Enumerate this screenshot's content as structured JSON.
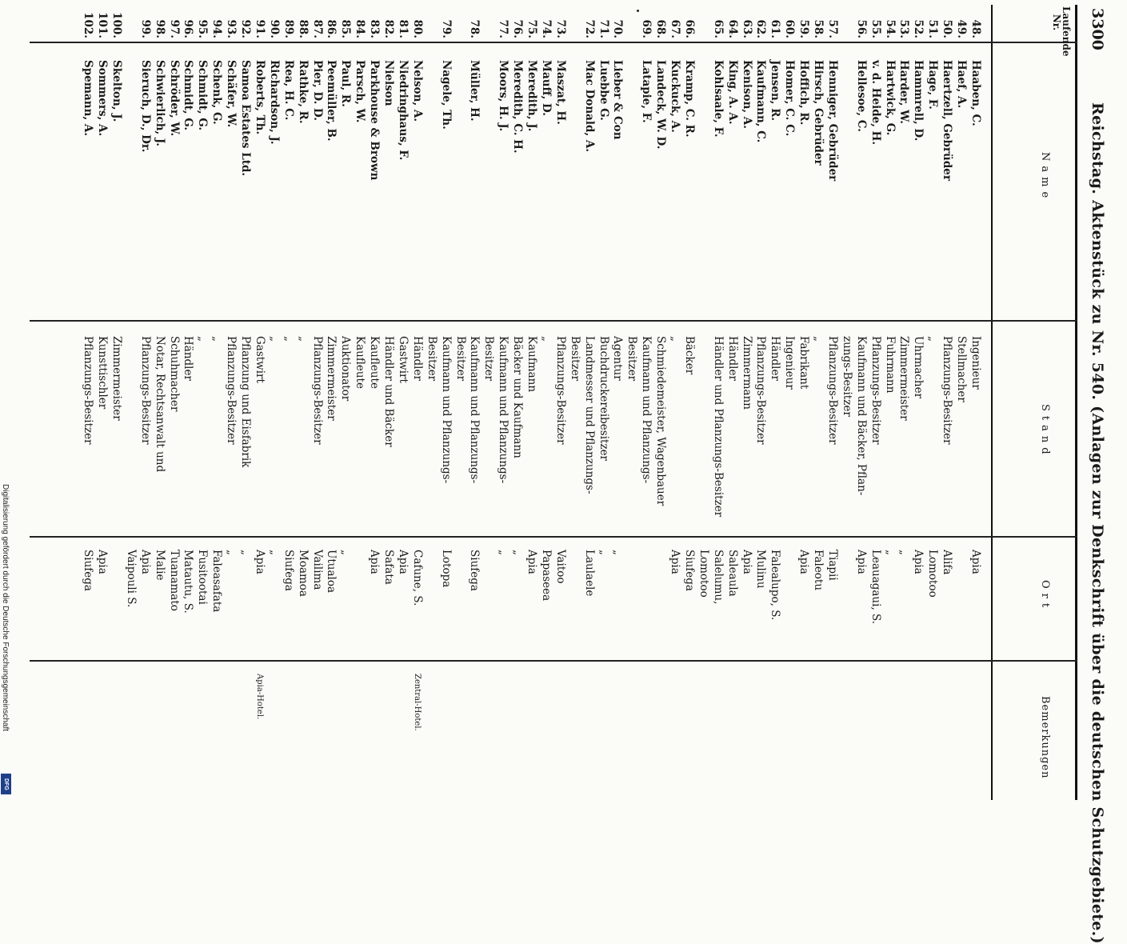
{
  "header": {
    "page_number": "3300",
    "title": "Reichstag. Aktenstück zu Nr. 540. (Anlagen zur Denkschrift über die deutschen Schutzgebiete.)"
  },
  "columns": {
    "nr": "Laufende Nr.",
    "name": "Name",
    "stand": "Stand",
    "ort": "Ort",
    "bemerkungen": "Bemerkungen"
  },
  "rows": [
    {
      "nr": "48.",
      "name": "Haaben, C.",
      "stand": "Ingenieur",
      "ort": "Apia",
      "bem": ""
    },
    {
      "nr": "49.",
      "name": "Haef, A.",
      "stand": "Stellmacher",
      "ort": "",
      "bem": ""
    },
    {
      "nr": "50.",
      "name": "Haertzell, Gebrüder",
      "stand": "Pflanzungs-Besitzer",
      "ort": "Alifa",
      "bem": ""
    },
    {
      "nr": "51.",
      "name": "Hage, F.",
      "stand": "„",
      "ort": "Lomotoo",
      "bem": ""
    },
    {
      "nr": "52.",
      "name": "Hammrell, D.",
      "stand": "Uhrmacher",
      "ort": "Apia",
      "bem": ""
    },
    {
      "nr": "53.",
      "name": "Harder, W.",
      "stand": "Zimmermeister",
      "ort": "„",
      "bem": ""
    },
    {
      "nr": "54.",
      "name": "Hartwick, G.",
      "stand": "Fuhrmann",
      "ort": "„",
      "bem": ""
    },
    {
      "nr": "55.",
      "name": "v. d. Heide, H.",
      "stand": "Pflanzungs-Besitzer",
      "ort": "Leauagaui, S.",
      "bem": ""
    },
    {
      "nr": "56.",
      "name": "Hellesoe, C.",
      "stand": "Kaufmann und Bäcker, Pflan-",
      "ort": "Apia",
      "bem": ""
    },
    {
      "nr": "",
      "name": "",
      "stand": "zungs-Besitzer",
      "ort": "",
      "bem": ""
    },
    {
      "nr": "57.",
      "name": "Henniger, Gebrüder",
      "stand": "Pflanzungs-Besitzer",
      "ort": "Tiapii",
      "bem": ""
    },
    {
      "nr": "58.",
      "name": "Hirsch, Gebrüder",
      "stand": "„",
      "ort": "Faleotu",
      "bem": ""
    },
    {
      "nr": "59.",
      "name": "Hoffich, R.",
      "stand": "Fabrikant",
      "ort": "Apia",
      "bem": ""
    },
    {
      "nr": "60.",
      "name": "Homer, C. C.",
      "stand": "Ingenieur",
      "ort": "",
      "bem": ""
    },
    {
      "nr": "61.",
      "name": "Jensen, R.",
      "stand": "Händler",
      "ort": "Falealupo, S.",
      "bem": ""
    },
    {
      "nr": "62.",
      "name": "Kaufmann, C.",
      "stand": "Pflanzungs-Besitzer",
      "ort": "Mulinu",
      "bem": ""
    },
    {
      "nr": "63.",
      "name": "Kenison, A.",
      "stand": "Zimmermann",
      "ort": "Apia",
      "bem": ""
    },
    {
      "nr": "64.",
      "name": "King, A. A.",
      "stand": "Händler",
      "ort": "Saleaula",
      "bem": ""
    },
    {
      "nr": "65.",
      "name": "Kohlsaale, F.",
      "stand": "Händler und Pflanzungs-Besitzer",
      "ort": "Salelumu,",
      "bem": ""
    },
    {
      "nr": "",
      "name": "",
      "stand": "",
      "ort": "Lomotoo",
      "bem": ""
    },
    {
      "nr": "66.",
      "name": "Kramp, C. R.",
      "stand": "Bäcker",
      "ort": "Siufega",
      "bem": ""
    },
    {
      "nr": "67.",
      "name": "Kuckuck, A.",
      "stand": "„",
      "ort": "Apia",
      "bem": ""
    },
    {
      "nr": "68.",
      "name": "Landeck, W. D.",
      "stand": "Schmiedemeister, Wagenbauer",
      "ort": "",
      "bem": ""
    },
    {
      "nr": "69.",
      "name": "Latapie, F.",
      "stand": "Kaufmann und Pflanzungs-",
      "ort": "",
      "bem": ""
    },
    {
      "nr": "",
      "name": "",
      "stand": "Besitzer",
      "ort": "",
      "bem": ""
    },
    {
      "nr": "70.",
      "name": "Lieber & Con",
      "stand": "Agentur",
      "ort": "„",
      "bem": ""
    },
    {
      "nr": "71.",
      "name": "Luebbe G.",
      "stand": "Buchdruckereibesitzer",
      "ort": "„",
      "bem": ""
    },
    {
      "nr": "72.",
      "name": "Mac Donald, A.",
      "stand": "Landmesser und Pflanzungs-",
      "ort": "Laulaele",
      "bem": ""
    },
    {
      "nr": "",
      "name": "",
      "stand": "Besitzer",
      "ort": "",
      "bem": ""
    },
    {
      "nr": "73.",
      "name": "Maszat, H.",
      "stand": "Pflanzungs-Besitzer",
      "ort": "Vaitoo",
      "bem": ""
    },
    {
      "nr": "74.",
      "name": "Mauff, D.",
      "stand": "„",
      "ort": "Papaseea",
      "bem": ""
    },
    {
      "nr": "75.",
      "name": "Meredith, J.",
      "stand": "Kaufmann",
      "ort": "Apia",
      "bem": ""
    },
    {
      "nr": "76.",
      "name": "Meredith, C. H.",
      "stand": "Bäcker und Kaufmann",
      "ort": "„",
      "bem": ""
    },
    {
      "nr": "77.",
      "name": "Moors, H. J.",
      "stand": "Kaufmann und Pflanzungs-",
      "ort": "„",
      "bem": ""
    },
    {
      "nr": "",
      "name": "",
      "stand": "Besitzer",
      "ort": "",
      "bem": ""
    },
    {
      "nr": "78.",
      "name": "Müller, H.",
      "stand": "Kaufmann und Pflanzungs-",
      "ort": "Siufega",
      "bem": ""
    },
    {
      "nr": "",
      "name": "",
      "stand": "Besitzer",
      "ort": "",
      "bem": ""
    },
    {
      "nr": "79.",
      "name": "Nagele, Th.",
      "stand": "Kaufmann und Pflanzungs-",
      "ort": "Lotopa",
      "bem": ""
    },
    {
      "nr": "",
      "name": "",
      "stand": "Besitzer",
      "ort": "",
      "bem": ""
    },
    {
      "nr": "80.",
      "name": "Nelson, A.",
      "stand": "Händler",
      "ort": "Cafune, S.",
      "bem": "Zentral-Hotel."
    },
    {
      "nr": "81.",
      "name": "Niedringhaus, F.",
      "stand": "Gastwirt",
      "ort": "Apia",
      "bem": ""
    },
    {
      "nr": "82.",
      "name": "Nielson",
      "stand": "Händler und Bäcker",
      "ort": "Safata",
      "bem": ""
    },
    {
      "nr": "83.",
      "name": "Parkhouse & Brown",
      "stand": "Kaufleute",
      "ort": "Apia",
      "bem": ""
    },
    {
      "nr": "84.",
      "name": "Parsch, W.",
      "stand": "Kaufleute",
      "ort": "",
      "bem": ""
    },
    {
      "nr": "85.",
      "name": "Paul, R.",
      "stand": "Auktionator",
      "ort": "„",
      "bem": ""
    },
    {
      "nr": "86.",
      "name": "Peemüller, B.",
      "stand": "Zimmermeister",
      "ort": "Utualoa",
      "bem": ""
    },
    {
      "nr": "87.",
      "name": "Pier, D. D.",
      "stand": "Pflanzungs-Besitzer",
      "ort": "Vailima",
      "bem": ""
    },
    {
      "nr": "88.",
      "name": "Rathke, R.",
      "stand": "„",
      "ort": "Moamoa",
      "bem": ""
    },
    {
      "nr": "89.",
      "name": "Rea, H. C.",
      "stand": "„",
      "ort": "Siufega",
      "bem": ""
    },
    {
      "nr": "90.",
      "name": "Richardson, J.",
      "stand": "„",
      "ort": "„",
      "bem": ""
    },
    {
      "nr": "91.",
      "name": "Roberts, Th.",
      "stand": "Gastwirt",
      "ort": "Apia",
      "bem": "Apia-Hotel."
    },
    {
      "nr": "92.",
      "name": "Samoa Estates Ltd.",
      "stand": "Pflanzung und Eisfabrik",
      "ort": "„",
      "bem": ""
    },
    {
      "nr": "93.",
      "name": "Schäfer, W.",
      "stand": "Pflanzungs-Besitzer",
      "ort": "„",
      "bem": ""
    },
    {
      "nr": "94.",
      "name": "Schenk, G.",
      "stand": "„",
      "ort": "Faleasafata",
      "bem": ""
    },
    {
      "nr": "95.",
      "name": "Schmidt, G.",
      "stand": "„",
      "ort": "Fusitootai",
      "bem": ""
    },
    {
      "nr": "96.",
      "name": "Schmidt, G.",
      "stand": "Händler",
      "ort": "Matautu, S.",
      "bem": ""
    },
    {
      "nr": "97.",
      "name": "Schröder, W.",
      "stand": "Schuhmacher",
      "ort": "Tuanamato",
      "bem": ""
    },
    {
      "nr": "98.",
      "name": "Schwierlich, J.",
      "stand": "Notar, Rechtsanwalt und",
      "ort": "Malie",
      "bem": ""
    },
    {
      "nr": "99.",
      "name": "Sieruch, D., Dr.",
      "stand": "Pflanzungs-Besitzer",
      "ort": "Apia",
      "bem": ""
    },
    {
      "nr": "",
      "name": "",
      "stand": "",
      "ort": "Vaipouli S.",
      "bem": ""
    },
    {
      "nr": "100.",
      "name": "Skelton, J.",
      "stand": "Zimmermeister",
      "ort": "",
      "bem": ""
    },
    {
      "nr": "101.",
      "name": "Sommers, A.",
      "stand": "Kunsttischler",
      "ort": "Apia",
      "bem": ""
    },
    {
      "nr": "102.",
      "name": "Spemann, A.",
      "stand": "Pflanzungs-Besitzer",
      "ort": "Siufega",
      "bem": ""
    }
  ],
  "footer": {
    "dfg_text": "Digitalisierung gefördert durch die Deutsche Forschungsgemeinschaft",
    "dfg_logo": "DFG"
  }
}
